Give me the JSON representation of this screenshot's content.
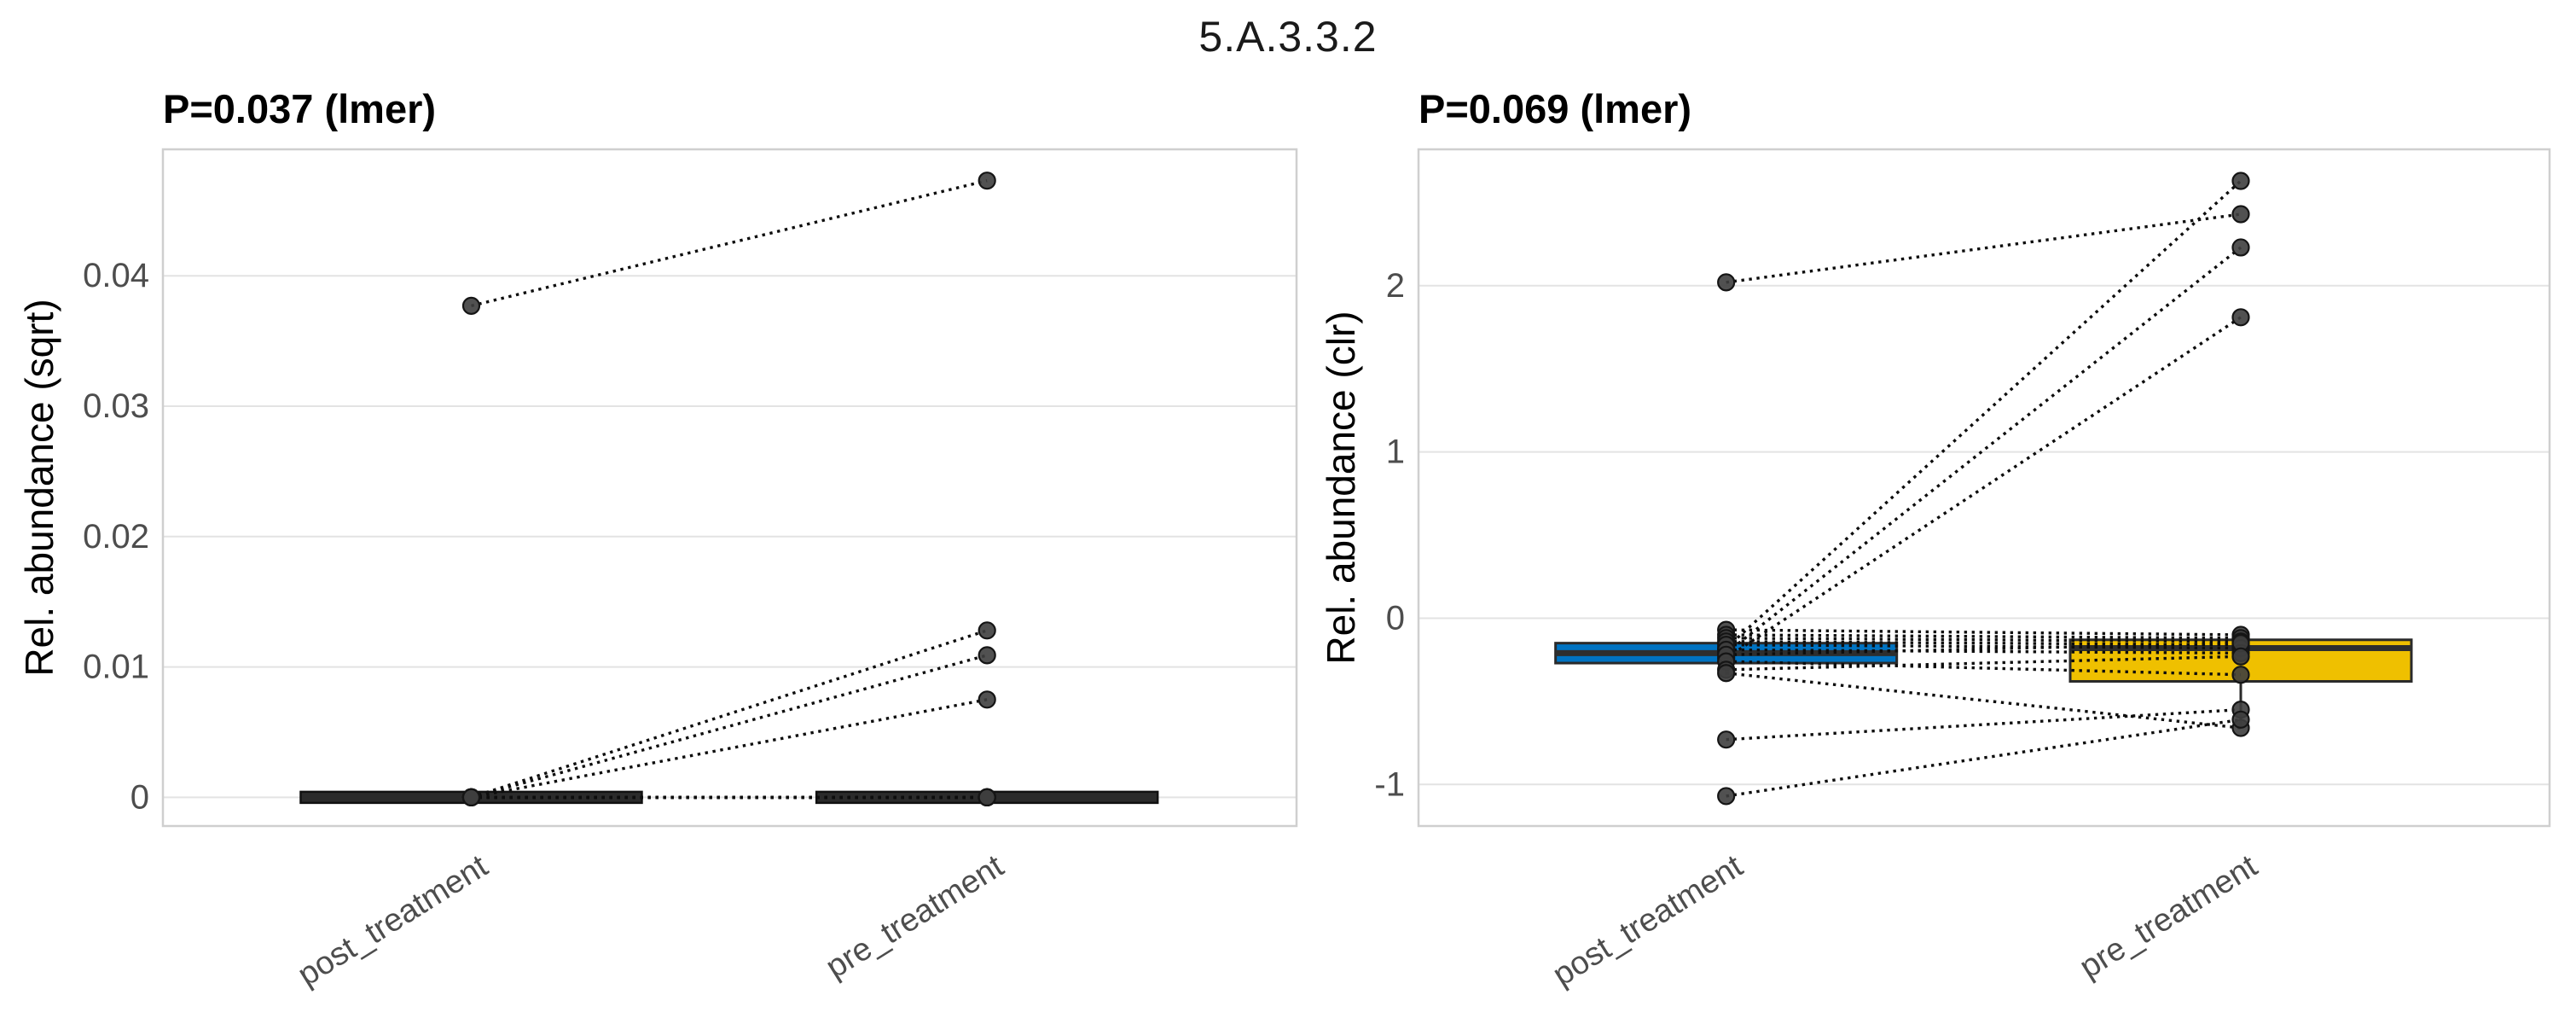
{
  "figure": {
    "title": "5.A.3.3.2"
  },
  "chart_data": [
    {
      "type": "paired-box-scatter",
      "title": "P=0.037 (lmer)",
      "ylabel": "Rel. abundance (sqrt)",
      "xlabel": "",
      "categories": [
        "post_treatment",
        "pre_treatment"
      ],
      "yticks": [
        0,
        0.01,
        0.02,
        0.03,
        0.04
      ],
      "ytick_labels": [
        "0",
        "0.01",
        "0.02",
        "0.03",
        "0.04"
      ],
      "ylim": [
        -0.0022,
        0.0497
      ],
      "grid": "horizontal-major",
      "legend": "none",
      "box_fill": [
        "#2b2b2b",
        "#2b2b2b"
      ],
      "collapsed_at_zero": true,
      "boxes": [
        {
          "category": "post_treatment",
          "q1": 0,
          "median": 0,
          "q3": 0,
          "whisker_low": 0,
          "whisker_high": 0
        },
        {
          "category": "pre_treatment",
          "q1": 0,
          "median": 0,
          "q3": 0,
          "whisker_low": 0,
          "whisker_high": 0
        }
      ],
      "pairs": [
        [
          0.0377,
          0.0473
        ],
        [
          0,
          0.0128
        ],
        [
          0,
          0.0109
        ],
        [
          0,
          0.0075
        ],
        [
          0,
          0
        ],
        [
          0,
          0
        ],
        [
          0,
          0
        ],
        [
          0,
          0
        ],
        [
          0,
          0
        ],
        [
          0,
          0
        ],
        [
          0,
          0
        ],
        [
          0,
          0
        ],
        [
          0,
          0
        ],
        [
          0,
          0
        ]
      ]
    },
    {
      "type": "paired-box-scatter",
      "title": "P=0.069 (lmer)",
      "ylabel": "Rel. abundance (clr)",
      "xlabel": "",
      "categories": [
        "post_treatment",
        "pre_treatment"
      ],
      "yticks": [
        -1,
        0,
        1,
        2
      ],
      "ytick_labels": [
        "-1",
        "0",
        "1",
        "2"
      ],
      "ylim": [
        -1.25,
        2.82
      ],
      "grid": "horizontal-major",
      "legend": "none",
      "box_fill": [
        "#0073C2",
        "#EFC000"
      ],
      "collapsed_at_zero": false,
      "boxes": [
        {
          "category": "post_treatment",
          "q1": -0.27,
          "median": -0.21,
          "q3": -0.15,
          "whisker_low": -0.34,
          "whisker_high": -0.15
        },
        {
          "category": "pre_treatment",
          "q1": -0.38,
          "median": -0.18,
          "q3": -0.13,
          "whisker_low": -0.65,
          "whisker_high": -0.13
        }
      ],
      "pairs": [
        [
          -0.18,
          2.63
        ],
        [
          2.02,
          2.43
        ],
        [
          -0.21,
          2.23
        ],
        [
          -0.24,
          1.81
        ],
        [
          -0.07,
          -0.1
        ],
        [
          -0.1,
          -0.12
        ],
        [
          -0.12,
          -0.14
        ],
        [
          -0.14,
          -0.16
        ],
        [
          -0.16,
          -0.18
        ],
        [
          -0.19,
          -0.21
        ],
        [
          -0.22,
          -0.15
        ],
        [
          -0.26,
          -0.34
        ],
        [
          -0.31,
          -0.23
        ],
        [
          -0.33,
          -0.66
        ],
        [
          -0.73,
          -0.55
        ],
        [
          -1.07,
          -0.61
        ]
      ]
    }
  ],
  "style_colors": {
    "post_box_blue": "#0073C2",
    "pre_box_gold": "#EFC000",
    "point_fill": "#3e3e3e",
    "pair_line": "#0d0d0d",
    "grid_line": "#e3e3e3",
    "panel_border": "#cfcfcf",
    "tick_text": "#4d4d4d"
  }
}
